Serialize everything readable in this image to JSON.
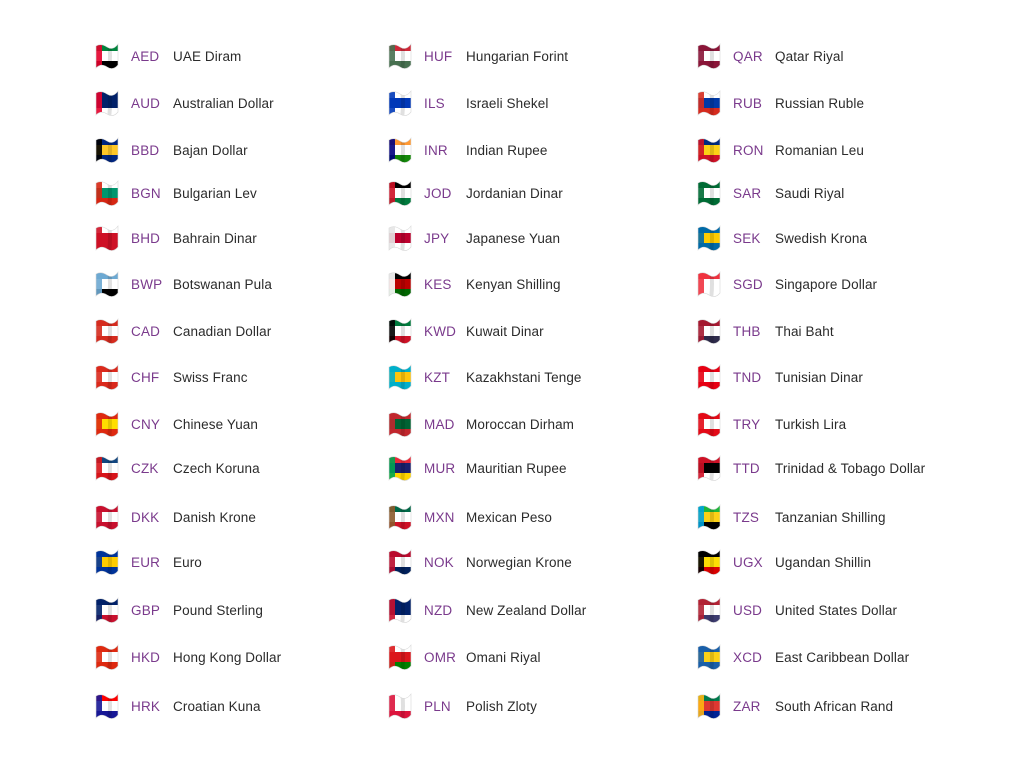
{
  "colors": {
    "code": "#7a3a8c",
    "name": "#2b2b2b",
    "background": "#ffffff"
  },
  "columns": [
    {
      "items": [
        {
          "code": "AED",
          "name": "UAE Diram",
          "flag": "uae-flag-icon",
          "colors": [
            "#00843d",
            "#ffffff",
            "#000000",
            "#e4002b"
          ]
        },
        {
          "code": "AUD",
          "name": "Australian Dollar",
          "flag": "australia-flag-icon",
          "colors": [
            "#012169",
            "#012169",
            "#ffffff",
            "#e4002b"
          ]
        },
        {
          "code": "BBD",
          "name": "Bajan Dollar",
          "flag": "barbados-flag-icon",
          "colors": [
            "#00267f",
            "#ffc726",
            "#00267f",
            "#000000"
          ]
        },
        {
          "code": "BGN",
          "name": "Bulgarian Lev",
          "flag": "bulgaria-flag-icon",
          "colors": [
            "#ffffff",
            "#00966e",
            "#d62612",
            "#d62612"
          ]
        },
        {
          "code": "BHD",
          "name": "Bahrain Dinar",
          "flag": "bahrain-flag-icon",
          "colors": [
            "#ffffff",
            "#ce1126",
            "#ce1126",
            "#ce1126"
          ]
        },
        {
          "code": "BWP",
          "name": "Botswanan Pula",
          "flag": "botswana-flag-icon",
          "colors": [
            "#6da9d2",
            "#ffffff",
            "#000000",
            "#6da9d2"
          ]
        },
        {
          "code": "CAD",
          "name": "Canadian Dollar",
          "flag": "canada-flag-icon",
          "colors": [
            "#d52b1e",
            "#ffffff",
            "#d52b1e",
            "#d52b1e"
          ]
        },
        {
          "code": "CHF",
          "name": "Swiss Franc",
          "flag": "switzerland-flag-icon",
          "colors": [
            "#da291c",
            "#ffffff",
            "#da291c",
            "#da291c"
          ]
        },
        {
          "code": "CNY",
          "name": "Chinese Yuan",
          "flag": "china-flag-icon",
          "colors": [
            "#de2910",
            "#ffde00",
            "#de2910",
            "#de2910"
          ]
        },
        {
          "code": "CZK",
          "name": "Czech Koruna",
          "flag": "czechia-flag-icon",
          "colors": [
            "#11457e",
            "#ffffff",
            "#d7141a",
            "#d7141a"
          ]
        },
        {
          "code": "DKK",
          "name": "Danish Krone",
          "flag": "denmark-flag-icon",
          "colors": [
            "#c8102e",
            "#ffffff",
            "#c8102e",
            "#c8102e"
          ]
        },
        {
          "code": "EUR",
          "name": "Euro",
          "flag": "eu-flag-icon",
          "colors": [
            "#003399",
            "#ffcc00",
            "#003399",
            "#003399"
          ]
        },
        {
          "code": "GBP",
          "name": "Pound Sterling",
          "flag": "uk-flag-icon",
          "colors": [
            "#012169",
            "#ffffff",
            "#c8102e",
            "#012169"
          ]
        },
        {
          "code": "HKD",
          "name": "Hong Kong Dollar",
          "flag": "hong-kong-flag-icon",
          "colors": [
            "#de2910",
            "#ffffff",
            "#de2910",
            "#de2910"
          ]
        },
        {
          "code": "HRK",
          "name": "Croatian Kuna",
          "flag": "croatia-flag-icon",
          "colors": [
            "#ff0000",
            "#ffffff",
            "#171796",
            "#171796"
          ]
        }
      ]
    },
    {
      "items": [
        {
          "code": "HUF",
          "name": "Hungarian Forint",
          "flag": "hungary-flag-icon",
          "colors": [
            "#ce2939",
            "#ffffff",
            "#477050",
            "#477050"
          ]
        },
        {
          "code": "ILS",
          "name": "Israeli Shekel",
          "flag": "israel-flag-icon",
          "colors": [
            "#ffffff",
            "#0038b8",
            "#ffffff",
            "#0038b8"
          ]
        },
        {
          "code": "INR",
          "name": "Indian Rupee",
          "flag": "india-flag-icon",
          "colors": [
            "#ff9933",
            "#ffffff",
            "#138808",
            "#000080"
          ]
        },
        {
          "code": "JOD",
          "name": "Jordanian Dinar",
          "flag": "jordan-flag-icon",
          "colors": [
            "#000000",
            "#ffffff",
            "#007a3d",
            "#ce1126"
          ]
        },
        {
          "code": "JPY",
          "name": "Japanese Yuan",
          "flag": "japan-flag-icon",
          "colors": [
            "#ffffff",
            "#bc002d",
            "#ffffff",
            "#e6e6e6"
          ]
        },
        {
          "code": "KES",
          "name": "Kenyan Shilling",
          "flag": "kenya-flag-icon",
          "colors": [
            "#000000",
            "#bb0000",
            "#006600",
            "#ffffff"
          ]
        },
        {
          "code": "KWD",
          "name": "Kuwait Dinar",
          "flag": "kuwait-flag-icon",
          "colors": [
            "#007a3d",
            "#ffffff",
            "#ce1126",
            "#000000"
          ]
        },
        {
          "code": "KZT",
          "name": "Kazakhstani Tenge",
          "flag": "kazakhstan-flag-icon",
          "colors": [
            "#00afca",
            "#fec50c",
            "#00afca",
            "#00afca"
          ]
        },
        {
          "code": "MAD",
          "name": "Moroccan Dirham",
          "flag": "morocco-flag-icon",
          "colors": [
            "#c1272d",
            "#006233",
            "#c1272d",
            "#c1272d"
          ]
        },
        {
          "code": "MUR",
          "name": "Mauritian Rupee",
          "flag": "mauritius-flag-icon",
          "colors": [
            "#ea2839",
            "#1a206d",
            "#ffd500",
            "#00a551"
          ]
        },
        {
          "code": "MXN",
          "name": "Mexican Peso",
          "flag": "mexico-flag-icon",
          "colors": [
            "#006847",
            "#ffffff",
            "#ce1126",
            "#8c5a2b"
          ]
        },
        {
          "code": "NOK",
          "name": "Norwegian Krone",
          "flag": "norway-flag-icon",
          "colors": [
            "#ba0c2f",
            "#ffffff",
            "#00205b",
            "#ba0c2f"
          ]
        },
        {
          "code": "NZD",
          "name": "New Zealand Dollar",
          "flag": "new-zealand-flag-icon",
          "colors": [
            "#012169",
            "#012169",
            "#ffffff",
            "#c8102e"
          ]
        },
        {
          "code": "OMR",
          "name": "Omani Riyal",
          "flag": "oman-flag-icon",
          "colors": [
            "#ffffff",
            "#db161b",
            "#008000",
            "#db161b"
          ]
        },
        {
          "code": "PLN",
          "name": "Polish Zloty",
          "flag": "poland-flag-icon",
          "colors": [
            "#ffffff",
            "#ffffff",
            "#dc143c",
            "#dc143c"
          ]
        }
      ]
    },
    {
      "items": [
        {
          "code": "QAR",
          "name": "Qatar Riyal",
          "flag": "qatar-flag-icon",
          "colors": [
            "#8a1538",
            "#ffffff",
            "#8a1538",
            "#8a1538"
          ]
        },
        {
          "code": "RUB",
          "name": "Russian Ruble",
          "flag": "russia-flag-icon",
          "colors": [
            "#ffffff",
            "#0039a6",
            "#d52b1e",
            "#d52b1e"
          ]
        },
        {
          "code": "RON",
          "name": "Romanian Leu",
          "flag": "romania-flag-icon",
          "colors": [
            "#002b7f",
            "#fcd116",
            "#ce1126",
            "#ce1126"
          ]
        },
        {
          "code": "SAR",
          "name": "Saudi Riyal",
          "flag": "saudi-arabia-flag-icon",
          "colors": [
            "#006c35",
            "#ffffff",
            "#006c35",
            "#006c35"
          ]
        },
        {
          "code": "SEK",
          "name": "Swedish Krona",
          "flag": "sweden-flag-icon",
          "colors": [
            "#006aa7",
            "#fecc00",
            "#006aa7",
            "#006aa7"
          ]
        },
        {
          "code": "SGD",
          "name": "Singapore Dollar",
          "flag": "singapore-flag-icon",
          "colors": [
            "#ef3340",
            "#ffffff",
            "#ffffff",
            "#ef3340"
          ]
        },
        {
          "code": "THB",
          "name": "Thai Baht",
          "flag": "thailand-flag-icon",
          "colors": [
            "#a51931",
            "#ffffff",
            "#2d2a4a",
            "#a51931"
          ]
        },
        {
          "code": "TND",
          "name": "Tunisian Dinar",
          "flag": "tunisia-flag-icon",
          "colors": [
            "#e70013",
            "#ffffff",
            "#e70013",
            "#e70013"
          ]
        },
        {
          "code": "TRY",
          "name": "Turkish Lira",
          "flag": "turkey-flag-icon",
          "colors": [
            "#e30a17",
            "#ffffff",
            "#e30a17",
            "#e30a17"
          ]
        },
        {
          "code": "TTD",
          "name": "Trinidad & Tobago Dollar",
          "flag": "trinidad-tobago-flag-icon",
          "colors": [
            "#ce1126",
            "#000000",
            "#ffffff",
            "#ce1126"
          ]
        },
        {
          "code": "TZS",
          "name": "Tanzanian Shilling",
          "flag": "tanzania-flag-icon",
          "colors": [
            "#1eb53a",
            "#fcd116",
            "#000000",
            "#00a3dd"
          ]
        },
        {
          "code": "UGX",
          "name": "Ugandan Shillin",
          "flag": "uganda-flag-icon",
          "colors": [
            "#000000",
            "#fcdc04",
            "#d90000",
            "#000000"
          ]
        },
        {
          "code": "USD",
          "name": "United States Dollar",
          "flag": "usa-flag-icon",
          "colors": [
            "#b22234",
            "#ffffff",
            "#3c3b6e",
            "#b22234"
          ]
        },
        {
          "code": "XCD",
          "name": "East Caribbean Dollar",
          "flag": "east-caribbean-flag-icon",
          "colors": [
            "#1a5fa8",
            "#fcd116",
            "#1a5fa8",
            "#1a5fa8"
          ]
        },
        {
          "code": "ZAR",
          "name": "South African Rand",
          "flag": "south-africa-flag-icon",
          "colors": [
            "#007a4d",
            "#de3831",
            "#002395",
            "#ffb612"
          ]
        }
      ]
    }
  ]
}
